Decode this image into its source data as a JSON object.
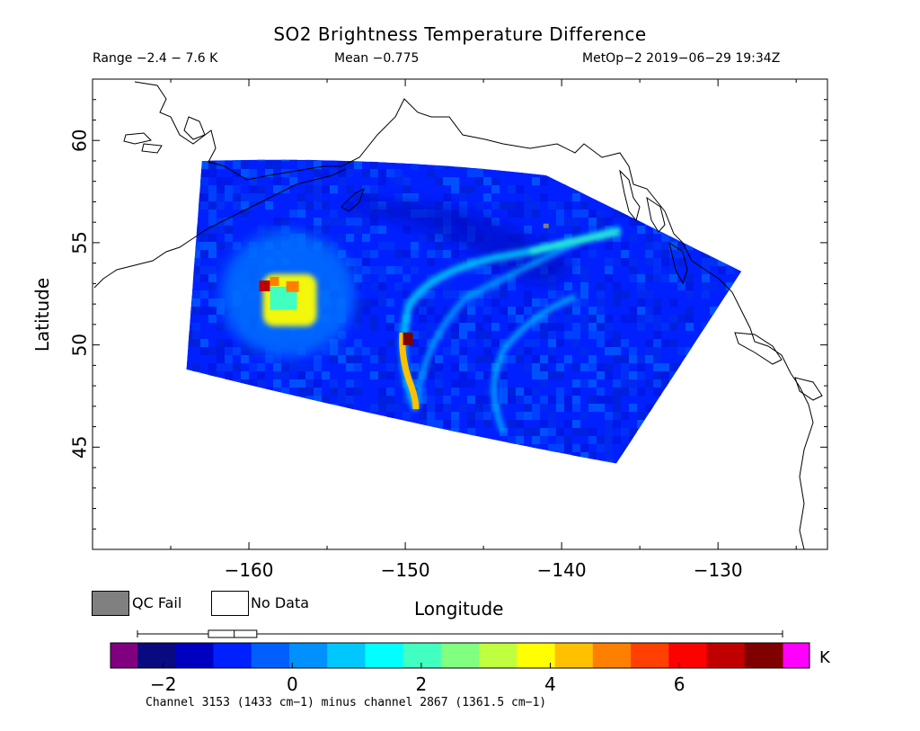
{
  "header": {
    "title": "SO2 Brightness Temperature Difference",
    "range": "Range −2.4 − 7.6 K",
    "mean": "Mean −0.775",
    "satellite_time": "MetOp−2 2019−06−29 19:34Z"
  },
  "legend": {
    "qc_fail_label": "QC Fail",
    "no_data_label": "No Data",
    "qc_fail_color": "#808080",
    "no_data_color": "#ffffff"
  },
  "colorbar": {
    "unit": "K",
    "tick_labels": [
      "−2",
      "0",
      "2",
      "4",
      "6"
    ],
    "tick_values": [
      -2,
      0,
      2,
      4,
      6
    ],
    "vmin": -2.4,
    "vmax": 7.6,
    "underflow_color": "#800080",
    "overflow_color": "#ff00ff",
    "colors": [
      "#0a0a80",
      "#0000c0",
      "#0020ff",
      "#0060ff",
      "#0090ff",
      "#00c8ff",
      "#00ffff",
      "#40ffc0",
      "#80ff80",
      "#c0ff40",
      "#ffff00",
      "#ffc000",
      "#ff8000",
      "#ff4000",
      "#ff0000",
      "#c00000",
      "#800000"
    ],
    "boxplot": {
      "whisker_low": -2.4,
      "q1": -1.3,
      "median": -0.9,
      "q3": -0.55,
      "whisker_high": 7.6
    },
    "caption": "Channel 3153 (1433 cm−1) minus channel 2867 (1361.5 cm−1)"
  },
  "chart_data": {
    "type": "heatmap",
    "title": "SO2 Brightness Temperature Difference",
    "xlabel": "Longitude",
    "ylabel": "Latitude",
    "xlim": [
      -170,
      -123
    ],
    "ylim": [
      40,
      63
    ],
    "x_ticks": [
      -160,
      -150,
      -140,
      -130
    ],
    "x_tick_labels": [
      "−160",
      "−150",
      "−140",
      "−130"
    ],
    "y_ticks": [
      45,
      50,
      55,
      60
    ],
    "y_tick_labels": [
      "45",
      "50",
      "55",
      "60"
    ],
    "swath_corners": [
      [
        -163,
        59
      ],
      [
        -141,
        58.3
      ],
      [
        -128.5,
        53.6
      ],
      [
        -136.5,
        44.2
      ],
      [
        -164,
        48.8
      ]
    ],
    "features": [
      {
        "name": "SO2 plume",
        "lon": -157.5,
        "lat": 52.5,
        "value": 3.5
      },
      {
        "name": "plume hot spot",
        "lon": -159,
        "lat": 52.8,
        "value": 6.5
      },
      {
        "name": "arc max",
        "lon": -149.8,
        "lat": 50.3,
        "value": 7.6
      },
      {
        "name": "QC fail pixel",
        "lon": -141,
        "lat": 55.8,
        "value": "QC Fail"
      }
    ],
    "background_value": -1,
    "grid": false
  }
}
